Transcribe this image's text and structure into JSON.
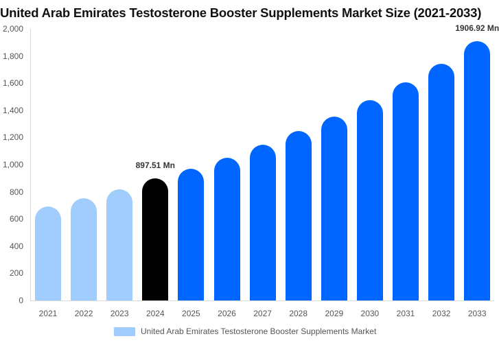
{
  "chart_data": {
    "type": "bar",
    "title": "United Arab Emirates Testosterone Booster Supplements Market Size (2021-2033)",
    "xlabel": "",
    "ylabel": "",
    "ylim": [
      0,
      2000
    ],
    "yticks": [
      "0",
      "200",
      "400",
      "600",
      "800",
      "1,000",
      "1,200",
      "1,400",
      "1,600",
      "1,800",
      "2,000"
    ],
    "grid": false,
    "legend_position": "bottom",
    "categories": [
      "2021",
      "2022",
      "2023",
      "2024",
      "2025",
      "2026",
      "2027",
      "2028",
      "2029",
      "2030",
      "2031",
      "2032",
      "2033"
    ],
    "series": [
      {
        "name": "United Arab Emirates Testosterone Booster Supplements Market",
        "values": [
          692,
          752,
          818,
          897.51,
          970,
          1050,
          1146,
          1247,
          1353,
          1475,
          1606,
          1742,
          1906.92
        ]
      }
    ],
    "bar_colors": [
      "#a0cdfc",
      "#a0cdfc",
      "#a0cdfc",
      "#000000",
      "#0066ff",
      "#0066ff",
      "#0066ff",
      "#0066ff",
      "#0066ff",
      "#0066ff",
      "#0066ff",
      "#0066ff",
      "#0066ff"
    ],
    "annotations": [
      {
        "category": "2024",
        "text": "897.51 Mn"
      },
      {
        "category": "2033",
        "text": "1906.92 Mn"
      }
    ]
  },
  "legend": {
    "label": "United Arab Emirates Testosterone Booster Supplements Market",
    "color": "#a0cdfc"
  }
}
